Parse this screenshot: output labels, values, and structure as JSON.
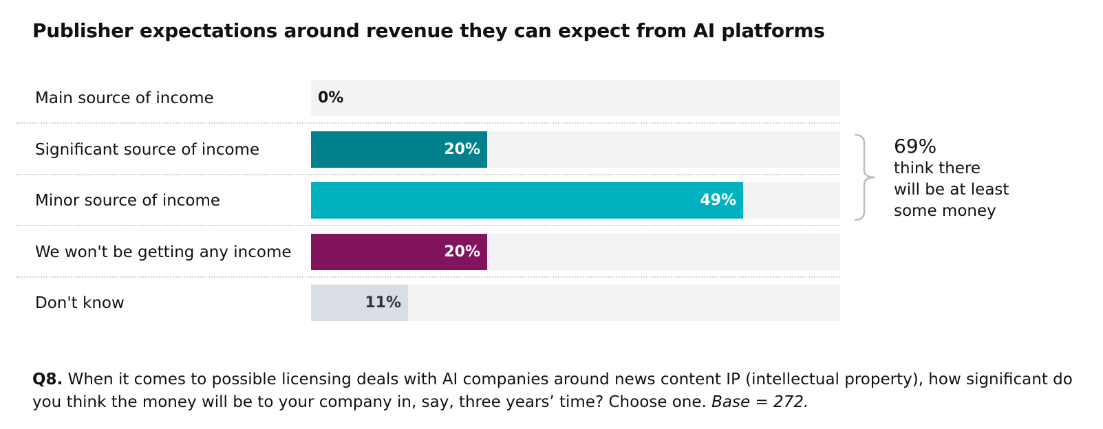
{
  "chart_data": {
    "type": "bar",
    "orientation": "horizontal",
    "title": "Publisher expectations around revenue they can expect from AI platforms",
    "categories": [
      "Main source of income",
      "Significant source of income",
      "Minor source of income",
      "We won't be getting any income",
      "Don't know"
    ],
    "values": [
      0,
      20,
      49,
      20,
      11
    ],
    "value_labels": [
      "0%",
      "20%",
      "49%",
      "20%",
      "11%"
    ],
    "colors": [
      "#f3f3f3",
      "#00818c",
      "#00b2c0",
      "#82135d",
      "#d9dde5"
    ],
    "label_colors": [
      "#111111",
      "#ffffff",
      "#ffffff",
      "#ffffff",
      "#333333"
    ],
    "xlim": [
      0,
      60
    ],
    "xlabel": "",
    "ylabel": "",
    "grid": false,
    "annotation": {
      "value": "69%",
      "lines": [
        "think there",
        "will be at least",
        "some money"
      ],
      "applies_to": [
        "Significant source of income",
        "Minor source of income"
      ]
    }
  },
  "footnote": {
    "question_id": "Q8.",
    "question": " When it comes to possible licensing deals with AI companies around news content IP (intellectual property), how significant do you think the money will be to your company in, say, three years’ time? Choose one. ",
    "base": "Base = 272."
  }
}
